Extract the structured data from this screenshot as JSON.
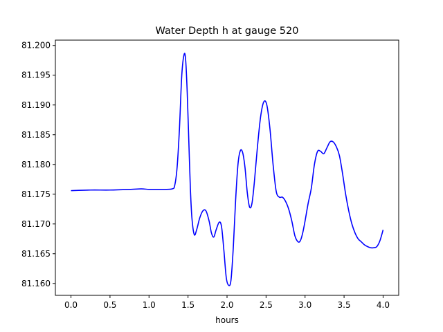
{
  "chart_data": {
    "type": "line",
    "title": "Water Depth h at gauge 520",
    "xlabel": "hours",
    "ylabel": "",
    "xlim": [
      -0.2,
      4.2
    ],
    "ylim": [
      81.158,
      81.2009
    ],
    "x_ticks": [
      0.0,
      0.5,
      1.0,
      1.5,
      2.0,
      2.5,
      3.0,
      3.5,
      4.0
    ],
    "x_tick_labels": [
      "0.0",
      "0.5",
      "1.0",
      "1.5",
      "2.0",
      "2.5",
      "3.0",
      "3.5",
      "4.0"
    ],
    "y_ticks": [
      81.16,
      81.165,
      81.17,
      81.175,
      81.18,
      81.185,
      81.19,
      81.195,
      81.2
    ],
    "y_tick_labels": [
      "81.160",
      "81.165",
      "81.170",
      "81.175",
      "81.180",
      "81.185",
      "81.190",
      "81.195",
      "81.200"
    ],
    "grid": false,
    "series": [
      {
        "color": "#0000ff",
        "x": [
          0.0,
          0.25,
          0.5,
          0.75,
          0.9,
          1.0,
          1.1,
          1.2,
          1.3,
          1.33,
          1.36,
          1.39,
          1.42,
          1.45,
          1.47,
          1.49,
          1.51,
          1.53,
          1.55,
          1.58,
          1.61,
          1.65,
          1.69,
          1.73,
          1.77,
          1.8,
          1.83,
          1.86,
          1.9,
          1.93,
          1.96,
          1.99,
          2.02,
          2.05,
          2.08,
          2.11,
          2.14,
          2.17,
          2.2,
          2.23,
          2.26,
          2.29,
          2.32,
          2.35,
          2.39,
          2.43,
          2.47,
          2.51,
          2.55,
          2.59,
          2.63,
          2.67,
          2.71,
          2.75,
          2.79,
          2.83,
          2.87,
          2.91,
          2.94,
          2.97,
          3.0,
          3.04,
          3.08,
          3.12,
          3.16,
          3.2,
          3.24,
          3.28,
          3.32,
          3.36,
          3.4,
          3.44,
          3.48,
          3.52,
          3.56,
          3.6,
          3.64,
          3.68,
          3.72,
          3.76,
          3.8,
          3.84,
          3.88,
          3.92,
          3.96,
          4.0
        ],
        "y": [
          81.1756,
          81.1757,
          81.1757,
          81.1758,
          81.1759,
          81.1758,
          81.1758,
          81.1758,
          81.1759,
          81.1765,
          81.1795,
          81.186,
          81.195,
          81.1985,
          81.1975,
          81.192,
          81.184,
          81.176,
          81.171,
          81.1682,
          81.169,
          81.171,
          81.1722,
          81.1722,
          81.1705,
          81.1685,
          81.1678,
          81.169,
          81.1703,
          81.1695,
          81.1655,
          81.161,
          81.1597,
          81.1605,
          81.166,
          81.174,
          81.18,
          81.1823,
          81.182,
          81.1795,
          81.1752,
          81.1728,
          81.1735,
          81.177,
          81.183,
          81.188,
          81.1905,
          81.19,
          81.186,
          81.18,
          81.1755,
          81.1745,
          81.1745,
          81.1738,
          81.1725,
          81.1705,
          81.168,
          81.167,
          81.1672,
          81.1685,
          81.1705,
          81.1735,
          81.176,
          81.18,
          81.1822,
          81.1822,
          81.1818,
          81.1828,
          81.1838,
          81.1838,
          81.183,
          81.1815,
          81.1785,
          81.175,
          81.1722,
          81.17,
          81.1685,
          81.1675,
          81.167,
          81.1665,
          81.1662,
          81.166,
          81.166,
          81.1662,
          81.1672,
          81.169
        ]
      }
    ]
  }
}
